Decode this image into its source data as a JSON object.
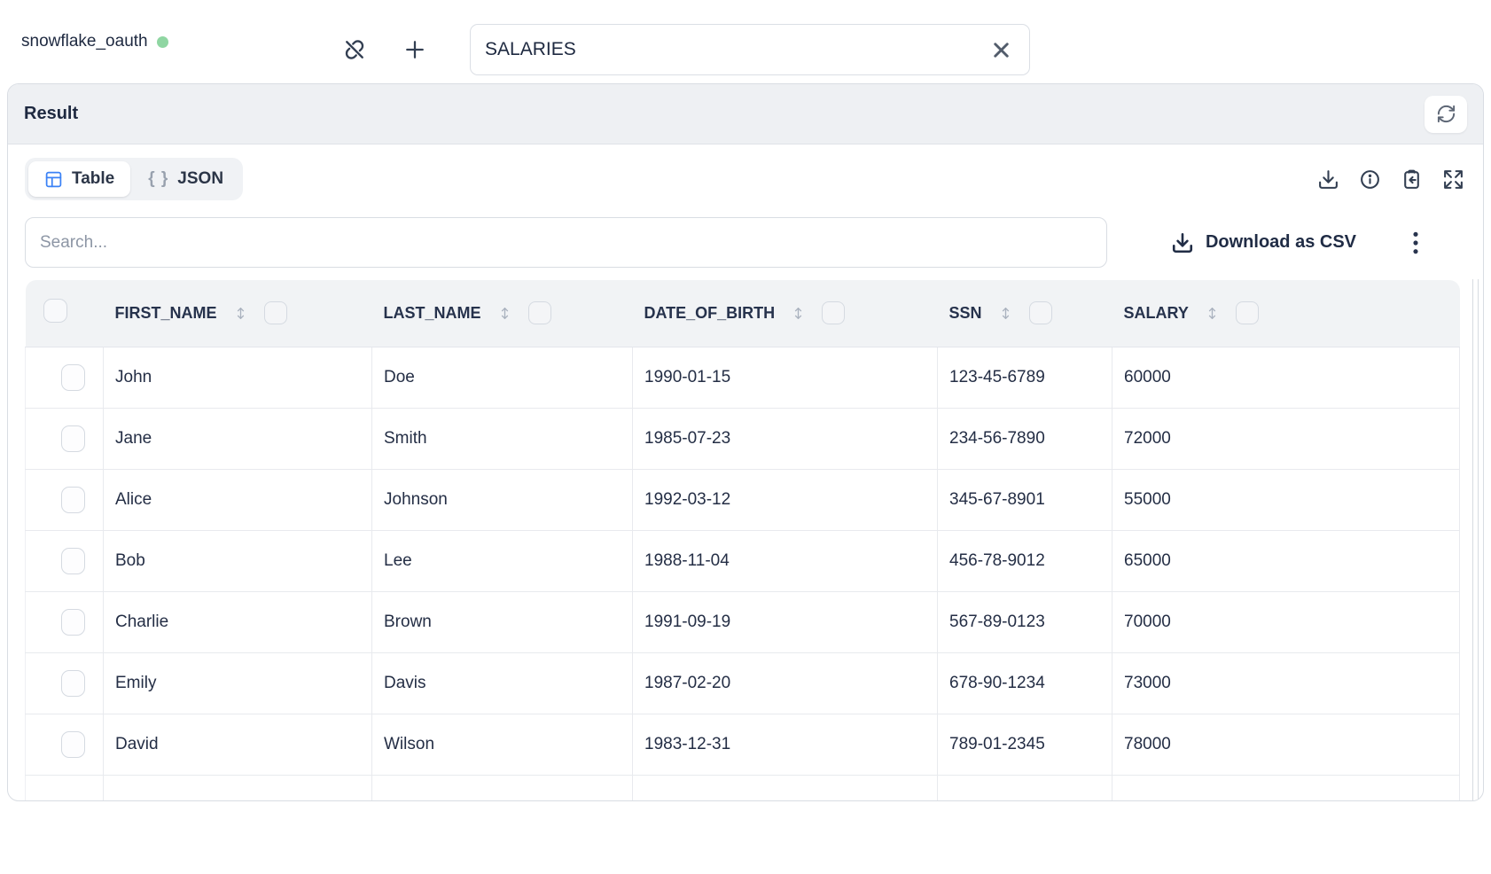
{
  "topbar": {
    "connection_name": "snowflake_oauth",
    "query_value": "SALARIES"
  },
  "result_panel": {
    "title": "Result",
    "view_tabs": {
      "table_label": "Table",
      "json_label": "JSON",
      "json_icon": "{ }"
    },
    "search_placeholder": "Search...",
    "download_csv_label": "Download as CSV",
    "table": {
      "columns": [
        "FIRST_NAME",
        "LAST_NAME",
        "DATE_OF_BIRTH",
        "SSN",
        "SALARY"
      ],
      "rows": [
        [
          "John",
          "Doe",
          "1990-01-15",
          "123-45-6789",
          "60000"
        ],
        [
          "Jane",
          "Smith",
          "1985-07-23",
          "234-56-7890",
          "72000"
        ],
        [
          "Alice",
          "Johnson",
          "1992-03-12",
          "345-67-8901",
          "55000"
        ],
        [
          "Bob",
          "Lee",
          "1988-11-04",
          "456-78-9012",
          "65000"
        ],
        [
          "Charlie",
          "Brown",
          "1991-09-19",
          "567-89-0123",
          "70000"
        ],
        [
          "Emily",
          "Davis",
          "1987-02-20",
          "678-90-1234",
          "73000"
        ],
        [
          "David",
          "Wilson",
          "1983-12-31",
          "789-01-2345",
          "78000"
        ]
      ]
    }
  },
  "colors": {
    "status_green": "#8fd6a2",
    "accent_blue": "#3b82f6",
    "text_dark": "#1e2940"
  }
}
